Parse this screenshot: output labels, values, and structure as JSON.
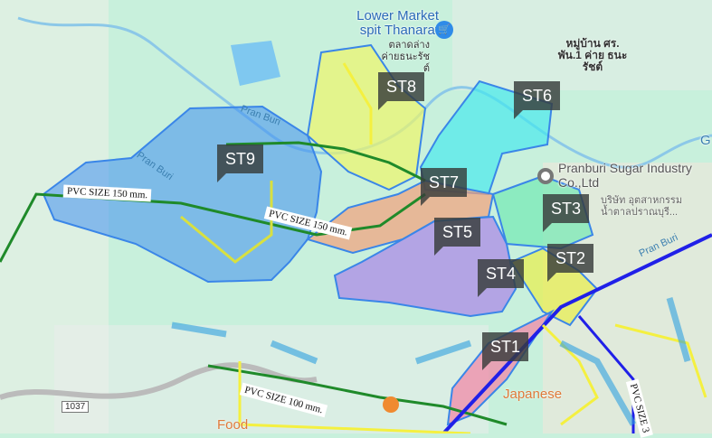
{
  "map": {
    "zones": [
      {
        "id": "ST9",
        "color": "#3f8ff0"
      },
      {
        "id": "ST8",
        "color": "#e6f56a"
      },
      {
        "id": "ST6",
        "color": "#3fe8ee"
      },
      {
        "id": "ST7",
        "color": "#f2a07a"
      },
      {
        "id": "ST5",
        "color": "#a77be8"
      },
      {
        "id": "ST3",
        "color": "#6be8b0"
      },
      {
        "id": "ST2",
        "color": "#e8ee4a"
      },
      {
        "id": "ST4",
        "color": "#b07ae8"
      },
      {
        "id": "ST1",
        "color": "#f08aa8"
      }
    ],
    "places": {
      "market_en": "Lower Market spit Thanarat",
      "market_th": "ตลาดล่าง ค่ายธนะรัชต์",
      "village_th": "หมู่บ้าน ศร. พัน.1 ค่าย ธนะรัชต์",
      "sugar_en": "Pranburi Sugar Industry Co.,Ltd",
      "sugar_th": "บริษัท อุตสาหกรรม น้ำตาลปราณบุรี...",
      "japanese": "Japanese",
      "food": "Food",
      "river1": "Pran Buri",
      "river2": "Pran Buri",
      "river3": "Pran Buri",
      "road_shield": "1037",
      "edge_g": "G"
    },
    "pipes": {
      "pvc150_a": "PVC SIZE 150 mm.",
      "pvc150_b": "PVC SIZE 150 mm.",
      "pvc100": "PVC SIZE 100 mm.",
      "pvc_vertical": "PVC SIZE 3"
    }
  }
}
